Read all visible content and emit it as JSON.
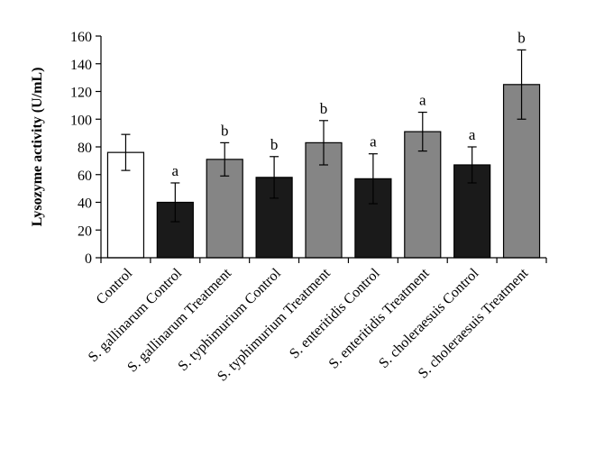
{
  "chart_data": {
    "type": "bar",
    "title": "",
    "xlabel": "",
    "ylabel": "Lysozyme activity (U/mL)",
    "ylim": [
      0,
      160
    ],
    "yticks": [
      0,
      20,
      40,
      60,
      80,
      100,
      120,
      140,
      160
    ],
    "grid": false,
    "legend": "none",
    "categories": [
      "Control",
      "S. gallinarum Control",
      "S. gallinarum Treatment",
      "S. typhimurium Control",
      "S. typhimurium Treatment",
      "S. enteritidis Control",
      "S. enteritidis Treatment",
      "S. choleraesuis Control",
      "S. choleraesuis Treatment"
    ],
    "values": [
      76,
      40,
      71,
      58,
      83,
      57,
      91,
      67,
      125
    ],
    "errors": [
      13,
      14,
      12,
      15,
      16,
      18,
      14,
      13,
      25
    ],
    "significance": [
      "",
      "a",
      "b",
      "b",
      "b",
      "a",
      "a",
      "a",
      "b"
    ],
    "colors": [
      "#ffffff",
      "#1a1a1a",
      "#858585",
      "#1a1a1a",
      "#858585",
      "#1a1a1a",
      "#858585",
      "#1a1a1a",
      "#858585"
    ],
    "bar_stroke": "#000000"
  }
}
